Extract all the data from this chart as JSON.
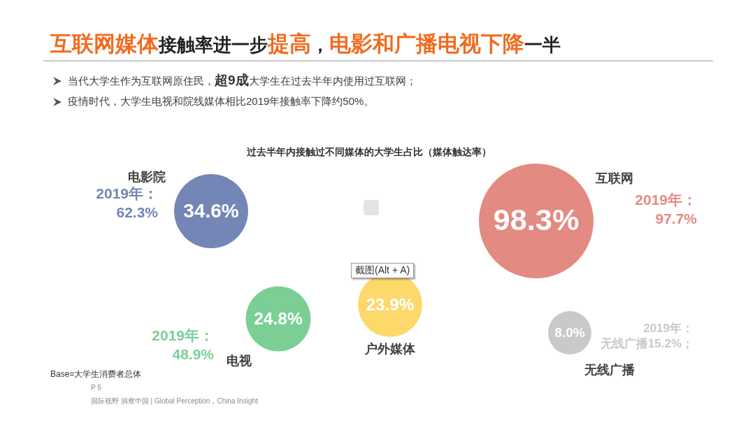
{
  "chart_data": {
    "type": "other",
    "title": "互联网媒体接触率进一步提高，电影和广播电视下降一半",
    "subtitle": "过去半年内接触过不同媒体的大学生占比（媒体触达率）",
    "categories": [
      "电影院",
      "互联网",
      "电视",
      "户外媒体",
      "无线广播"
    ],
    "values": [
      34.6,
      98.3,
      24.8,
      23.9,
      8.0
    ],
    "colors": [
      "#7486b5",
      "#e38a83",
      "#7bcf95",
      "#fdd86a",
      "#c9c9c9"
    ],
    "value_labels": [
      "34.6%",
      "98.3%",
      "24.8%",
      "23.9%",
      "8.0%"
    ],
    "annotations": [
      "当代大学生作为互联网原住民，超9成大学生在过去半年内使用过互联网；",
      "疫情时代，大学生电视和院线媒体相比2019年接触率下降约50%。",
      {
        "text": "2019年：62.3%",
        "x": "电影院"
      },
      {
        "text": "2019年：97.7%",
        "x": "互联网"
      },
      {
        "text": "2019年：48.9%",
        "x": "电视"
      },
      {
        "text": "2019年：无线广播15.2%；",
        "x": "无线广播"
      },
      "截图(Alt + A)",
      "Base=大学生消费者总体",
      "P 5",
      "国际视野  洞察中国 | Global Perception，China Insight"
    ]
  }
}
